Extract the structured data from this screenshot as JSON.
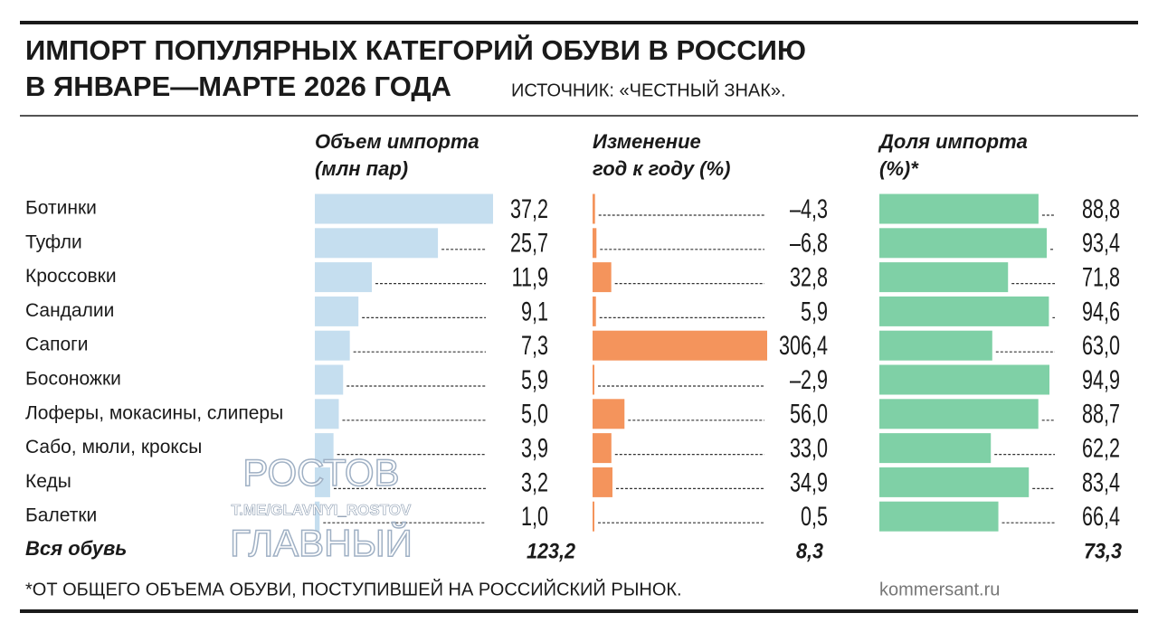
{
  "chart_data": {
    "type": "bar",
    "title_lines": [
      "ИМПОРТ ПОПУЛЯРНЫХ КАТЕГОРИЙ ОБУВИ В РОССИЮ",
      "В ЯНВАРЕ—МАРТЕ 2026 ГОДА"
    ],
    "source": "ИСТОЧНИК: «ЧЕСТНЫЙ ЗНАК».",
    "categories": [
      "Ботинки",
      "Туфли",
      "Кроссовки",
      "Сандалии",
      "Сапоги",
      "Босоножки",
      "Лоферы, мокасины, слиперы",
      "Сабо, мюли, кроксы",
      "Кеды",
      "Балетки"
    ],
    "total_name": "Вся обувь",
    "series": [
      {
        "name_lines": [
          "Объем импорта",
          "(млн пар)"
        ],
        "color": "#c5deef",
        "values": [
          37.2,
          25.7,
          11.9,
          9.1,
          7.3,
          5.9,
          5.0,
          3.9,
          3.2,
          1.0
        ],
        "value_labels": [
          "37,2",
          "25,7",
          "11,9",
          "9,1",
          "7,3",
          "5,9",
          "5,0",
          "3,9",
          "3,2",
          "1,0"
        ],
        "total": 123.2,
        "total_label": "123,2"
      },
      {
        "name_lines": [
          "Изменение",
          "год к году (%)"
        ],
        "color": "#f4945c",
        "values": [
          -4.3,
          -6.8,
          32.8,
          5.9,
          306.4,
          -2.9,
          56.0,
          33.0,
          34.9,
          0.5
        ],
        "value_labels": [
          "–4,3",
          "–6,8",
          "32,8",
          "5,9",
          "306,4",
          "–2,9",
          "56,0",
          "33,0",
          "34,9",
          "0,5"
        ],
        "total": 8.3,
        "total_label": "8,3"
      },
      {
        "name_lines": [
          "Доля импорта",
          "(%)*"
        ],
        "color": "#7fd0a6",
        "values": [
          88.8,
          93.4,
          71.8,
          94.6,
          63.0,
          94.9,
          88.7,
          62.2,
          83.4,
          66.4
        ],
        "value_labels": [
          "88,8",
          "93,4",
          "71,8",
          "94,6",
          "63,0",
          "94,9",
          "88,7",
          "62,2",
          "83,4",
          "66,4"
        ],
        "total": 73.3,
        "total_label": "73,3"
      }
    ],
    "footnote": "*ОТ ОБЩЕГО ОБЪЕМА ОБУВИ, ПОСТУПИВШЕЙ НА РОССИЙСКИЙ РЫНОК.",
    "credit": "kommersant.ru",
    "watermark": [
      "РОСТОВ",
      "T.ME/GLAVNYI_ROSTOV",
      "ГЛАВНЫЙ"
    ]
  }
}
